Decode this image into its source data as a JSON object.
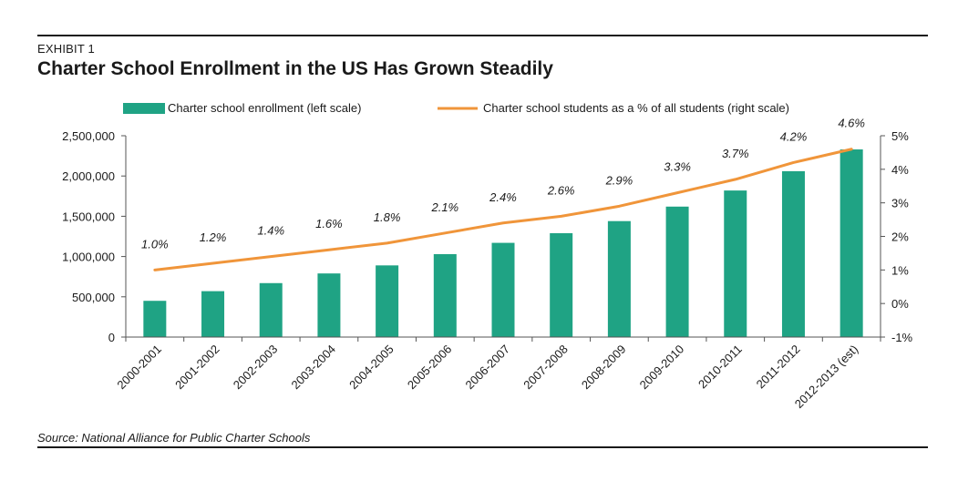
{
  "header": {
    "exhibit": "EXHIBIT 1",
    "title": "Charter School Enrollment in the US Has Grown Steadily"
  },
  "footer": {
    "source": "Source: National Alliance for Public Charter Schools"
  },
  "colors": {
    "bar": "#1fa384",
    "line": "#f0953a",
    "axis": "#555555",
    "text": "#1a1a1a"
  },
  "chart_data": {
    "type": "bar",
    "title": "Charter School Enrollment in the US Has Grown Steadily",
    "categories": [
      "2000-2001",
      "2001-2002",
      "2002-2003",
      "2003-2004",
      "2004-2005",
      "2005-2006",
      "2006-2007",
      "2007-2008",
      "2008-2009",
      "2009-2010",
      "2010-2011",
      "2011-2012",
      "2012-2013 (est)"
    ],
    "series": [
      {
        "name": "Charter school enrollment  (left scale)",
        "type": "bar",
        "axis": "left",
        "values": [
          450000,
          570000,
          670000,
          790000,
          890000,
          1030000,
          1170000,
          1290000,
          1440000,
          1620000,
          1820000,
          2060000,
          2330000
        ]
      },
      {
        "name": "Charter school students  as a % of all students  (right scale)",
        "type": "line",
        "axis": "right",
        "values": [
          1.0,
          1.2,
          1.4,
          1.6,
          1.8,
          2.1,
          2.4,
          2.6,
          2.9,
          3.3,
          3.7,
          4.2,
          4.6
        ],
        "labels": [
          "1.0%",
          "1.2%",
          "1.4%",
          "1.6%",
          "1.8%",
          "2.1%",
          "2.4%",
          "2.6%",
          "2.9%",
          "3.3%",
          "3.7%",
          "4.2%",
          "4.6%"
        ]
      }
    ],
    "left_axis": {
      "ylim": [
        0,
        2500000
      ],
      "ticks": [
        0,
        500000,
        1000000,
        1500000,
        2000000,
        2500000
      ],
      "tick_labels": [
        "0",
        "500,000",
        "1,000,000",
        "1,500,000",
        "2,000,000",
        "2,500,000"
      ]
    },
    "right_axis": {
      "ylim": [
        -1,
        5
      ],
      "ticks": [
        -1,
        0,
        1,
        2,
        3,
        4,
        5
      ],
      "tick_labels": [
        "-1%",
        "0%",
        "1%",
        "2%",
        "3%",
        "4%",
        "5%"
      ]
    },
    "legend": "top",
    "grid": false
  }
}
